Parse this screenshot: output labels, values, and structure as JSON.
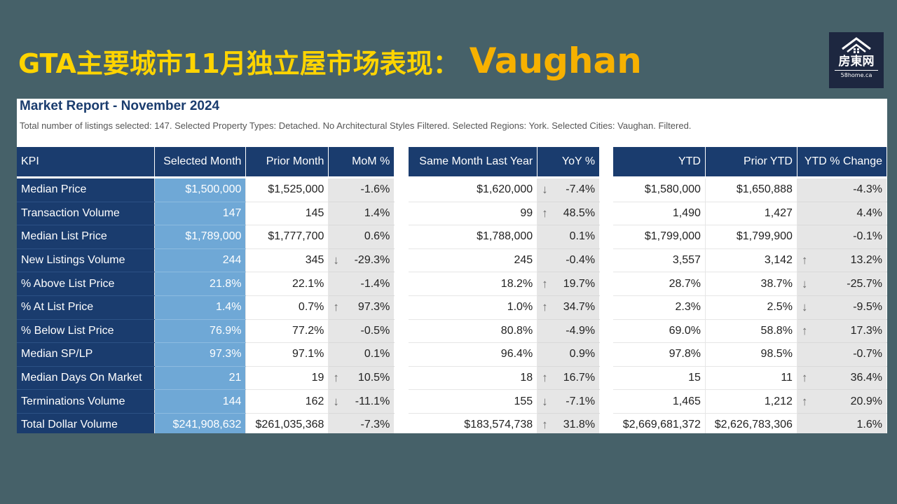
{
  "slide": {
    "title_main": "GTA主要城市11月独立屋市场表现：",
    "title_city": "Vaughan"
  },
  "logo": {
    "text_cn": "房東网",
    "url": "58home.ca"
  },
  "report": {
    "title": "Market Report - November 2024",
    "description": "Total number of listings selected: 147. Selected Property Types: Detached. No Architectural Styles Filtered. Selected Regions: York. Selected Cities: Vaughan. Filtered."
  },
  "table": {
    "headers": {
      "kpi": "KPI",
      "selected_month": "Selected Month",
      "prior_month": "Prior Month",
      "mom": "MoM %",
      "same_month_last_year": "Same Month Last Year",
      "yoy": "YoY %",
      "ytd": "YTD",
      "prior_ytd": "Prior YTD",
      "ytd_change": "YTD % Change"
    },
    "rows": [
      {
        "kpi": "Median Price",
        "selected": "$1,500,000",
        "prior": "$1,525,000",
        "mom": "-1.6%",
        "mom_arrow": "",
        "same_ly": "$1,620,000",
        "yoy": "-7.4%",
        "yoy_arrow": "down",
        "ytd": "$1,580,000",
        "prior_ytd": "$1,650,888",
        "ytd_chg": "-4.3%",
        "ytd_arrow": ""
      },
      {
        "kpi": "Transaction Volume",
        "selected": "147",
        "prior": "145",
        "mom": "1.4%",
        "mom_arrow": "",
        "same_ly": "99",
        "yoy": "48.5%",
        "yoy_arrow": "up",
        "ytd": "1,490",
        "prior_ytd": "1,427",
        "ytd_chg": "4.4%",
        "ytd_arrow": ""
      },
      {
        "kpi": "Median List Price",
        "selected": "$1,789,000",
        "prior": "$1,777,700",
        "mom": "0.6%",
        "mom_arrow": "",
        "same_ly": "$1,788,000",
        "yoy": "0.1%",
        "yoy_arrow": "",
        "ytd": "$1,799,000",
        "prior_ytd": "$1,799,900",
        "ytd_chg": "-0.1%",
        "ytd_arrow": ""
      },
      {
        "kpi": "New Listings Volume",
        "selected": "244",
        "prior": "345",
        "mom": "-29.3%",
        "mom_arrow": "down",
        "same_ly": "245",
        "yoy": "-0.4%",
        "yoy_arrow": "",
        "ytd": "3,557",
        "prior_ytd": "3,142",
        "ytd_chg": "13.2%",
        "ytd_arrow": "up"
      },
      {
        "kpi": "% Above List Price",
        "selected": "21.8%",
        "prior": "22.1%",
        "mom": "-1.4%",
        "mom_arrow": "",
        "same_ly": "18.2%",
        "yoy": "19.7%",
        "yoy_arrow": "up",
        "ytd": "28.7%",
        "prior_ytd": "38.7%",
        "ytd_chg": "-25.7%",
        "ytd_arrow": "down"
      },
      {
        "kpi": "% At List Price",
        "selected": "1.4%",
        "prior": "0.7%",
        "mom": "97.3%",
        "mom_arrow": "up",
        "same_ly": "1.0%",
        "yoy": "34.7%",
        "yoy_arrow": "up",
        "ytd": "2.3%",
        "prior_ytd": "2.5%",
        "ytd_chg": "-9.5%",
        "ytd_arrow": "down"
      },
      {
        "kpi": "% Below List Price",
        "selected": "76.9%",
        "prior": "77.2%",
        "mom": "-0.5%",
        "mom_arrow": "",
        "same_ly": "80.8%",
        "yoy": "-4.9%",
        "yoy_arrow": "",
        "ytd": "69.0%",
        "prior_ytd": "58.8%",
        "ytd_chg": "17.3%",
        "ytd_arrow": "up"
      },
      {
        "kpi": "Median SP/LP",
        "selected": "97.3%",
        "prior": "97.1%",
        "mom": "0.1%",
        "mom_arrow": "",
        "same_ly": "96.4%",
        "yoy": "0.9%",
        "yoy_arrow": "",
        "ytd": "97.8%",
        "prior_ytd": "98.5%",
        "ytd_chg": "-0.7%",
        "ytd_arrow": ""
      },
      {
        "kpi": "Median Days On Market",
        "selected": "21",
        "prior": "19",
        "mom": "10.5%",
        "mom_arrow": "up",
        "same_ly": "18",
        "yoy": "16.7%",
        "yoy_arrow": "up",
        "ytd": "15",
        "prior_ytd": "11",
        "ytd_chg": "36.4%",
        "ytd_arrow": "up"
      },
      {
        "kpi": "Terminations Volume",
        "selected": "144",
        "prior": "162",
        "mom": "-11.1%",
        "mom_arrow": "down",
        "same_ly": "155",
        "yoy": "-7.1%",
        "yoy_arrow": "down",
        "ytd": "1,465",
        "prior_ytd": "1,212",
        "ytd_chg": "20.9%",
        "ytd_arrow": "up"
      },
      {
        "kpi": "Total Dollar Volume",
        "selected": "$241,908,632",
        "prior": "$261,035,368",
        "mom": "-7.3%",
        "mom_arrow": "",
        "same_ly": "$183,574,738",
        "yoy": "31.8%",
        "yoy_arrow": "up",
        "ytd": "$2,669,681,372",
        "prior_ytd": "$2,626,783,306",
        "ytd_chg": "1.6%",
        "ytd_arrow": ""
      }
    ]
  },
  "colors": {
    "background": "#466169",
    "title_yellow": "#ffd400",
    "header_navy": "#1a3c6e",
    "selected_blue": "#6fa8d6",
    "pct_gray": "#e6e6e6"
  }
}
